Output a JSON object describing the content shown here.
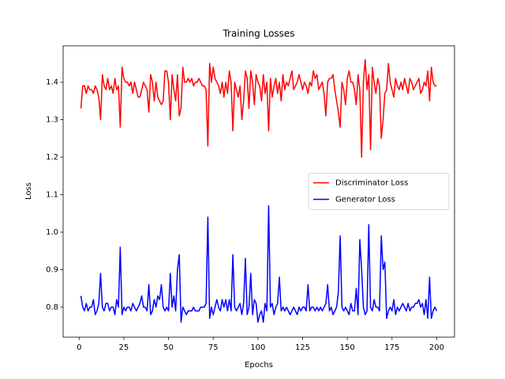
{
  "chart_data": {
    "type": "line",
    "title": "Training Losses",
    "xlabel": "Epochs",
    "ylabel": "Loss",
    "x": [
      1,
      2,
      3,
      4,
      5,
      6,
      7,
      8,
      9,
      10,
      11,
      12,
      13,
      14,
      15,
      16,
      17,
      18,
      19,
      20,
      21,
      22,
      23,
      24,
      25,
      26,
      27,
      28,
      29,
      30,
      31,
      32,
      33,
      34,
      35,
      36,
      37,
      38,
      39,
      40,
      41,
      42,
      43,
      44,
      45,
      46,
      47,
      48,
      49,
      50,
      51,
      52,
      53,
      54,
      55,
      56,
      57,
      58,
      59,
      60,
      61,
      62,
      63,
      64,
      65,
      66,
      67,
      68,
      69,
      70,
      71,
      72,
      73,
      74,
      75,
      76,
      77,
      78,
      79,
      80,
      81,
      82,
      83,
      84,
      85,
      86,
      87,
      88,
      89,
      90,
      91,
      92,
      93,
      94,
      95,
      96,
      97,
      98,
      99,
      100,
      101,
      102,
      103,
      104,
      105,
      106,
      107,
      108,
      109,
      110,
      111,
      112,
      113,
      114,
      115,
      116,
      117,
      118,
      119,
      120,
      121,
      122,
      123,
      124,
      125,
      126,
      127,
      128,
      129,
      130,
      131,
      132,
      133,
      134,
      135,
      136,
      137,
      138,
      139,
      140,
      141,
      142,
      143,
      144,
      145,
      146,
      147,
      148,
      149,
      150,
      151,
      152,
      153,
      154,
      155,
      156,
      157,
      158,
      159,
      160,
      161,
      162,
      163,
      164,
      165,
      166,
      167,
      168,
      169,
      170,
      171,
      172,
      173,
      174,
      175,
      176,
      177,
      178,
      179,
      180,
      181,
      182,
      183,
      184,
      185,
      186,
      187,
      188,
      189,
      190,
      191,
      192,
      193,
      194,
      195,
      196,
      197,
      198,
      199,
      200
    ],
    "series": [
      {
        "name": "Discriminator Loss",
        "color": "#ff0000",
        "values": [
          1.33,
          1.39,
          1.39,
          1.37,
          1.39,
          1.38,
          1.38,
          1.37,
          1.39,
          1.38,
          1.36,
          1.3,
          1.42,
          1.39,
          1.38,
          1.41,
          1.38,
          1.39,
          1.37,
          1.41,
          1.38,
          1.39,
          1.28,
          1.44,
          1.41,
          1.4,
          1.4,
          1.39,
          1.4,
          1.37,
          1.4,
          1.38,
          1.36,
          1.36,
          1.38,
          1.4,
          1.39,
          1.38,
          1.32,
          1.42,
          1.4,
          1.35,
          1.4,
          1.36,
          1.35,
          1.34,
          1.35,
          1.43,
          1.43,
          1.4,
          1.3,
          1.42,
          1.38,
          1.35,
          1.42,
          1.31,
          1.33,
          1.44,
          1.4,
          1.4,
          1.41,
          1.4,
          1.41,
          1.39,
          1.4,
          1.4,
          1.41,
          1.4,
          1.39,
          1.39,
          1.38,
          1.23,
          1.45,
          1.4,
          1.44,
          1.41,
          1.4,
          1.39,
          1.37,
          1.4,
          1.36,
          1.4,
          1.37,
          1.43,
          1.4,
          1.27,
          1.4,
          1.38,
          1.36,
          1.39,
          1.3,
          1.35,
          1.43,
          1.41,
          1.33,
          1.43,
          1.4,
          1.34,
          1.42,
          1.4,
          1.39,
          1.35,
          1.42,
          1.37,
          1.4,
          1.27,
          1.41,
          1.36,
          1.39,
          1.41,
          1.37,
          1.4,
          1.35,
          1.42,
          1.38,
          1.4,
          1.39,
          1.41,
          1.43,
          1.38,
          1.39,
          1.4,
          1.42,
          1.4,
          1.38,
          1.4,
          1.39,
          1.37,
          1.4,
          1.39,
          1.43,
          1.41,
          1.42,
          1.38,
          1.39,
          1.4,
          1.37,
          1.31,
          1.4,
          1.41,
          1.41,
          1.42,
          1.38,
          1.35,
          1.32,
          1.28,
          1.4,
          1.38,
          1.34,
          1.41,
          1.43,
          1.4,
          1.4,
          1.38,
          1.34,
          1.42,
          1.38,
          1.2,
          1.4,
          1.46,
          1.38,
          1.42,
          1.22,
          1.44,
          1.4,
          1.37,
          1.41,
          1.39,
          1.25,
          1.3,
          1.37,
          1.38,
          1.45,
          1.4,
          1.38,
          1.36,
          1.41,
          1.39,
          1.38,
          1.4,
          1.38,
          1.41,
          1.39,
          1.37,
          1.41,
          1.4,
          1.38,
          1.39,
          1.4,
          1.41,
          1.37,
          1.38,
          1.4,
          1.39,
          1.43,
          1.35,
          1.44,
          1.4,
          1.39,
          1.39
        ]
      },
      {
        "name": "Generator Loss",
        "color": "#0000ff",
        "values": [
          0.83,
          0.8,
          0.79,
          0.81,
          0.79,
          0.8,
          0.8,
          0.82,
          0.78,
          0.79,
          0.81,
          0.89,
          0.8,
          0.79,
          0.81,
          0.81,
          0.79,
          0.8,
          0.8,
          0.78,
          0.82,
          0.8,
          0.96,
          0.78,
          0.8,
          0.79,
          0.8,
          0.8,
          0.79,
          0.81,
          0.8,
          0.79,
          0.8,
          0.81,
          0.83,
          0.8,
          0.8,
          0.79,
          0.86,
          0.78,
          0.79,
          0.82,
          0.8,
          0.83,
          0.82,
          0.86,
          0.8,
          0.79,
          0.8,
          0.79,
          0.89,
          0.8,
          0.83,
          0.79,
          0.9,
          0.94,
          0.76,
          0.8,
          0.79,
          0.78,
          0.79,
          0.79,
          0.79,
          0.8,
          0.79,
          0.79,
          0.79,
          0.8,
          0.8,
          0.8,
          0.81,
          1.04,
          0.77,
          0.8,
          0.78,
          0.8,
          0.82,
          0.8,
          0.79,
          0.82,
          0.8,
          0.82,
          0.79,
          0.82,
          0.79,
          0.94,
          0.8,
          0.79,
          0.8,
          0.81,
          0.78,
          0.81,
          0.93,
          0.78,
          0.8,
          0.89,
          0.78,
          0.82,
          0.81,
          0.76,
          0.78,
          0.79,
          0.76,
          0.81,
          0.79,
          1.07,
          0.8,
          0.81,
          0.78,
          0.8,
          0.81,
          0.88,
          0.79,
          0.8,
          0.79,
          0.8,
          0.79,
          0.78,
          0.79,
          0.8,
          0.79,
          0.78,
          0.8,
          0.79,
          0.8,
          0.8,
          0.79,
          0.86,
          0.79,
          0.8,
          0.8,
          0.79,
          0.8,
          0.79,
          0.8,
          0.79,
          0.8,
          0.81,
          0.86,
          0.79,
          0.8,
          0.78,
          0.79,
          0.8,
          0.84,
          0.99,
          0.8,
          0.79,
          0.8,
          0.79,
          0.78,
          0.81,
          0.79,
          0.79,
          0.85,
          0.78,
          0.98,
          0.9,
          0.8,
          0.78,
          0.79,
          1.02,
          0.8,
          0.79,
          0.82,
          0.8,
          0.8,
          0.79,
          0.99,
          0.9,
          0.92,
          0.77,
          0.79,
          0.8,
          0.79,
          0.82,
          0.78,
          0.8,
          0.79,
          0.8,
          0.81,
          0.8,
          0.79,
          0.81,
          0.79,
          0.8,
          0.8,
          0.81,
          0.81,
          0.82,
          0.8,
          0.81,
          0.78,
          0.82,
          0.77,
          0.88,
          0.77,
          0.79,
          0.8,
          0.79
        ]
      }
    ],
    "xlim": [
      -8.95,
      209.95
    ],
    "xticks": [
      0,
      25,
      50,
      75,
      100,
      125,
      150,
      175,
      200
    ],
    "ylim": [
      0.72,
      1.497
    ],
    "yticks": [
      0.8,
      0.9,
      {
        "value": 1,
        "label": "1.0"
      },
      1.1,
      1.2,
      1.3,
      1.4
    ],
    "grid": false,
    "legend": "center right"
  }
}
